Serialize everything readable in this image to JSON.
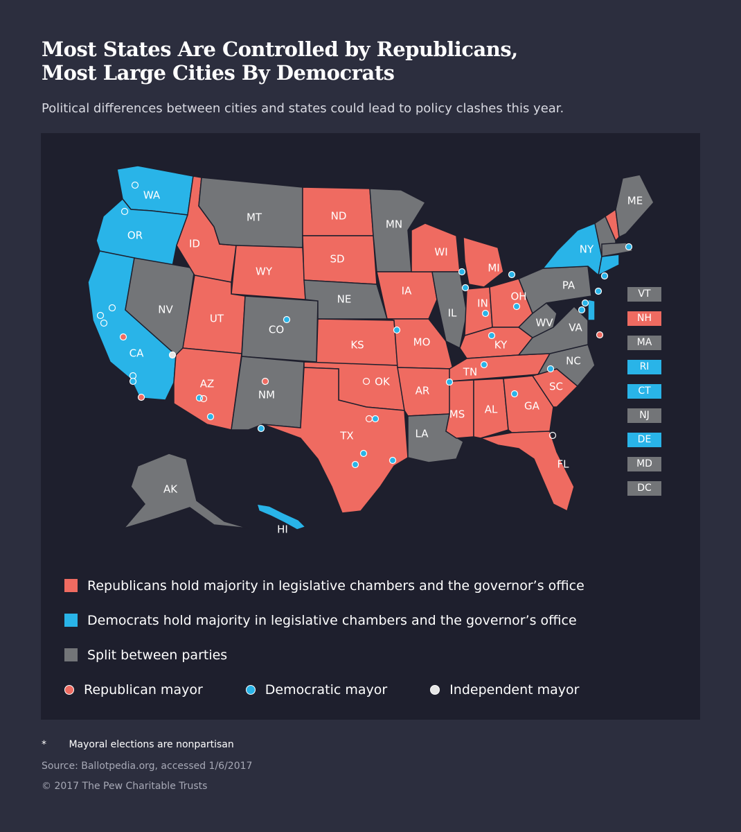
{
  "header": {
    "title_line1": "Most States Are Controlled by Republicans,",
    "title_line2": "Most Large Cities By Democrats",
    "subtitle": "Political differences between cities and states could lead to policy clashes this year."
  },
  "colors": {
    "republican": "#ef6b61",
    "democrat": "#29b4e8",
    "split": "#737578",
    "independent": "#e6e6e6",
    "background": "#2c2e3e",
    "panel": "#1e1f2d"
  },
  "states": {
    "WA": "dem",
    "OR": "dem",
    "CA": "dem",
    "NV": "split",
    "ID": "rep",
    "MT": "split",
    "WY": "rep",
    "UT": "rep",
    "AZ": "rep",
    "CO": "split",
    "NM": "split",
    "ND": "rep",
    "SD": "rep",
    "NE": "split",
    "KS": "rep",
    "OK": "rep",
    "TX": "rep",
    "MN": "split",
    "IA": "rep",
    "MO": "rep",
    "AR": "rep",
    "LA": "split",
    "WI": "rep",
    "IL": "split",
    "MI": "rep",
    "IN": "rep",
    "OH": "rep",
    "KY": "rep",
    "TN": "rep",
    "MS": "rep",
    "AL": "rep",
    "GA": "rep",
    "FL": "rep",
    "SC": "rep",
    "NC": "split",
    "VA": "split",
    "WV": "split",
    "PA": "split",
    "NY": "dem",
    "ME": "split",
    "AK": "split",
    "HI": "dem"
  },
  "small_states": [
    {
      "label": "VT",
      "party": "split"
    },
    {
      "label": "NH",
      "party": "rep"
    },
    {
      "label": "MA",
      "party": "split"
    },
    {
      "label": "RI",
      "party": "dem"
    },
    {
      "label": "CT",
      "party": "dem"
    },
    {
      "label": "NJ",
      "party": "split"
    },
    {
      "label": "DE",
      "party": "dem"
    },
    {
      "label": "MD",
      "party": "split"
    },
    {
      "label": "DC",
      "party": "split"
    }
  ],
  "legend": {
    "rep_control": "Republicans hold majority in legislative chambers and the governor’s office",
    "dem_control": "Democrats hold majority in legislative chambers and the governor’s office",
    "split": "Split between parties",
    "rep_mayor": "Republican mayor",
    "dem_mayor": "Democratic mayor",
    "ind_mayor": "Independent mayor"
  },
  "footer": {
    "footnote_marker": "*",
    "footnote": "Mayoral elections are nonpartisan",
    "source": "Source: Ballotpedia.org, accessed 1/6/2017",
    "copyright": "© 2017 The Pew Charitable Trusts"
  }
}
